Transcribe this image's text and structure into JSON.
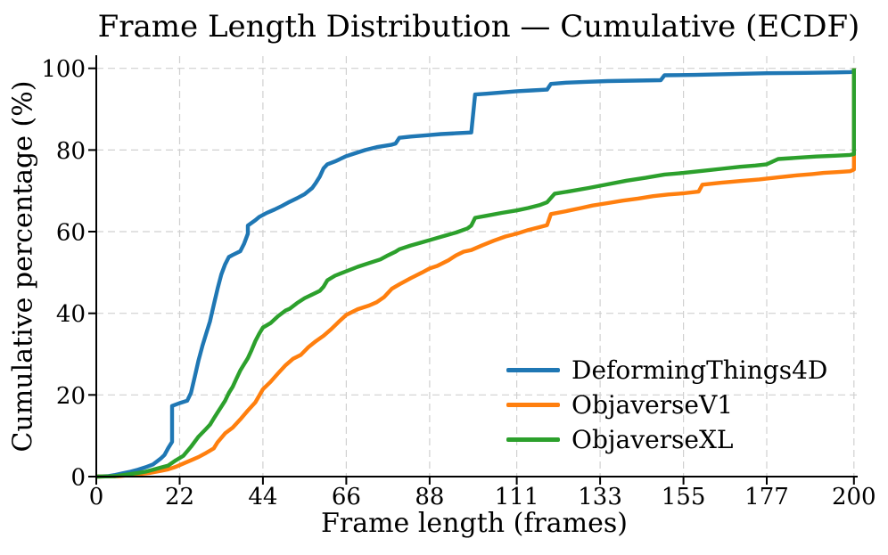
{
  "chart_data": {
    "type": "line",
    "title": "Frame Length Distribution — Cumulative (ECDF)",
    "xlabel": "Frame length (frames)",
    "ylabel": "Cumulative percentage (%)",
    "xlim": [
      0,
      200
    ],
    "ylim": [
      0,
      100
    ],
    "xticks": [
      0,
      22,
      44,
      66,
      88,
      111,
      133,
      155,
      177,
      200
    ],
    "yticks": [
      0,
      20,
      40,
      60,
      80,
      100
    ],
    "grid": true,
    "grid_color": "#d0d0d0",
    "axis_color": "#000000",
    "legend_position": "lower right",
    "series": [
      {
        "name": "DeformingThings4D",
        "color": "#1f77b4",
        "points": [
          [
            0,
            0
          ],
          [
            3,
            0.1
          ],
          [
            5,
            0.4
          ],
          [
            7,
            0.8
          ],
          [
            9,
            1.2
          ],
          [
            11,
            1.7
          ],
          [
            13,
            2.3
          ],
          [
            15,
            3
          ],
          [
            16,
            3.7
          ],
          [
            17,
            4.4
          ],
          [
            18,
            5.3
          ],
          [
            19,
            7
          ],
          [
            20,
            8.5
          ],
          [
            20,
            17.3
          ],
          [
            22,
            18
          ],
          [
            24,
            18.6
          ],
          [
            25,
            20.5
          ],
          [
            26,
            24.5
          ],
          [
            27,
            28.5
          ],
          [
            28,
            32
          ],
          [
            29,
            35
          ],
          [
            30,
            38
          ],
          [
            31,
            42
          ],
          [
            32,
            46
          ],
          [
            33,
            49.5
          ],
          [
            34,
            52
          ],
          [
            35,
            53.8
          ],
          [
            36,
            54.3
          ],
          [
            38,
            55.2
          ],
          [
            39,
            57
          ],
          [
            40,
            59.5
          ],
          [
            40,
            61.5
          ],
          [
            42,
            62.8
          ],
          [
            43,
            63.6
          ],
          [
            45,
            64.6
          ],
          [
            47,
            65.4
          ],
          [
            49,
            66.3
          ],
          [
            51,
            67.3
          ],
          [
            53,
            68.2
          ],
          [
            55,
            69.2
          ],
          [
            57,
            70.7
          ],
          [
            58,
            72
          ],
          [
            59,
            73.5
          ],
          [
            60,
            75.5
          ],
          [
            61,
            76.5
          ],
          [
            63,
            77.2
          ],
          [
            66,
            78.5
          ],
          [
            68,
            79.1
          ],
          [
            71,
            80
          ],
          [
            74,
            80.7
          ],
          [
            78,
            81.3
          ],
          [
            79,
            81.6
          ],
          [
            80,
            83
          ],
          [
            83,
            83.3
          ],
          [
            87,
            83.6
          ],
          [
            91,
            83.9
          ],
          [
            95,
            84.1
          ],
          [
            99,
            84.3
          ],
          [
            100,
            93.6
          ],
          [
            103,
            93.8
          ],
          [
            107,
            94.1
          ],
          [
            111,
            94.4
          ],
          [
            115,
            94.6
          ],
          [
            119,
            94.8
          ],
          [
            120,
            96.2
          ],
          [
            124,
            96.5
          ],
          [
            129,
            96.7
          ],
          [
            135,
            96.9
          ],
          [
            142,
            97
          ],
          [
            149,
            97.1
          ],
          [
            150,
            98.3
          ],
          [
            158,
            98.4
          ],
          [
            167,
            98.6
          ],
          [
            177,
            98.8
          ],
          [
            187,
            98.9
          ],
          [
            195,
            99
          ],
          [
            199,
            99.1
          ],
          [
            200,
            99.2
          ],
          [
            200,
            100
          ]
        ]
      },
      {
        "name": "ObjaverseV1",
        "color": "#ff7f0e",
        "points": [
          [
            0,
            0
          ],
          [
            6,
            0.1
          ],
          [
            9,
            0.4
          ],
          [
            12,
            0.7
          ],
          [
            14,
            0.9
          ],
          [
            17,
            1.4
          ],
          [
            19,
            1.8
          ],
          [
            21,
            2.4
          ],
          [
            23,
            3.2
          ],
          [
            25,
            4
          ],
          [
            27,
            4.8
          ],
          [
            29,
            5.8
          ],
          [
            31,
            6.9
          ],
          [
            32,
            8.4
          ],
          [
            34,
            10.6
          ],
          [
            36,
            12
          ],
          [
            38,
            14
          ],
          [
            40,
            16.2
          ],
          [
            42,
            18.2
          ],
          [
            44,
            21.4
          ],
          [
            46,
            23.2
          ],
          [
            48,
            25.3
          ],
          [
            50,
            27.3
          ],
          [
            52,
            28.9
          ],
          [
            54,
            29.8
          ],
          [
            56,
            31.7
          ],
          [
            58,
            33.2
          ],
          [
            60,
            34.5
          ],
          [
            62,
            36.1
          ],
          [
            64,
            37.9
          ],
          [
            66,
            39.6
          ],
          [
            69,
            41
          ],
          [
            72,
            41.9
          ],
          [
            74,
            42.7
          ],
          [
            76,
            44
          ],
          [
            78,
            46
          ],
          [
            80,
            47.1
          ],
          [
            83,
            48.6
          ],
          [
            86,
            50
          ],
          [
            88,
            51
          ],
          [
            90,
            51.6
          ],
          [
            93,
            53
          ],
          [
            95,
            54.2
          ],
          [
            97,
            55.1
          ],
          [
            99,
            55.5
          ],
          [
            102,
            56.7
          ],
          [
            105,
            57.8
          ],
          [
            108,
            58.8
          ],
          [
            111,
            59.5
          ],
          [
            114,
            60.4
          ],
          [
            117,
            61.1
          ],
          [
            119,
            61.6
          ],
          [
            120,
            64.3
          ],
          [
            124,
            65
          ],
          [
            128,
            65.8
          ],
          [
            131,
            66.4
          ],
          [
            135,
            67
          ],
          [
            139,
            67.6
          ],
          [
            143,
            68.1
          ],
          [
            147,
            68.7
          ],
          [
            151,
            69.1
          ],
          [
            155,
            69.4
          ],
          [
            159,
            69.8
          ],
          [
            160,
            71.5
          ],
          [
            165,
            72
          ],
          [
            170,
            72.4
          ],
          [
            175,
            72.8
          ],
          [
            180,
            73.3
          ],
          [
            185,
            73.8
          ],
          [
            189,
            74.1
          ],
          [
            192,
            74.4
          ],
          [
            196,
            74.6
          ],
          [
            199,
            74.8
          ],
          [
            200,
            75.2
          ],
          [
            200,
            100
          ]
        ]
      },
      {
        "name": "ObjaverseXL",
        "color": "#2ca02c",
        "points": [
          [
            0,
            0
          ],
          [
            5,
            0.1
          ],
          [
            8,
            0.5
          ],
          [
            11,
            0.9
          ],
          [
            13,
            1.2
          ],
          [
            15,
            1.7
          ],
          [
            17,
            2.2
          ],
          [
            19,
            2.7
          ],
          [
            21,
            4
          ],
          [
            23,
            5.1
          ],
          [
            25,
            7.3
          ],
          [
            27,
            9.8
          ],
          [
            29,
            11.7
          ],
          [
            30,
            12.7
          ],
          [
            31,
            14.2
          ],
          [
            32,
            15.7
          ],
          [
            33,
            17.1
          ],
          [
            34,
            18.6
          ],
          [
            35,
            20.5
          ],
          [
            36,
            22
          ],
          [
            37,
            24
          ],
          [
            38,
            26
          ],
          [
            39,
            27.5
          ],
          [
            40,
            29
          ],
          [
            41,
            31
          ],
          [
            42,
            33.2
          ],
          [
            43,
            35
          ],
          [
            44,
            36.5
          ],
          [
            46,
            37.6
          ],
          [
            48,
            39.3
          ],
          [
            50,
            40.7
          ],
          [
            51,
            41.1
          ],
          [
            53,
            42.5
          ],
          [
            55,
            43.7
          ],
          [
            57,
            44.6
          ],
          [
            59,
            45.5
          ],
          [
            60,
            46.5
          ],
          [
            61,
            48.1
          ],
          [
            63,
            49.2
          ],
          [
            66,
            50.3
          ],
          [
            69,
            51.4
          ],
          [
            72,
            52.3
          ],
          [
            75,
            53.2
          ],
          [
            77,
            54.2
          ],
          [
            79,
            55.1
          ],
          [
            80,
            55.7
          ],
          [
            83,
            56.6
          ],
          [
            86,
            57.4
          ],
          [
            89,
            58.2
          ],
          [
            92,
            59
          ],
          [
            95,
            59.8
          ],
          [
            98,
            60.8
          ],
          [
            99,
            61.5
          ],
          [
            100,
            63.4
          ],
          [
            103,
            63.9
          ],
          [
            107,
            64.6
          ],
          [
            111,
            65.2
          ],
          [
            114,
            65.8
          ],
          [
            117,
            66.5
          ],
          [
            119,
            67.2
          ],
          [
            121,
            69.3
          ],
          [
            125,
            69.9
          ],
          [
            130,
            70.7
          ],
          [
            135,
            71.6
          ],
          [
            140,
            72.5
          ],
          [
            145,
            73.2
          ],
          [
            150,
            74
          ],
          [
            155,
            74.4
          ],
          [
            160,
            74.9
          ],
          [
            165,
            75.4
          ],
          [
            170,
            75.9
          ],
          [
            174,
            76.2
          ],
          [
            177,
            76.5
          ],
          [
            180,
            77.8
          ],
          [
            185,
            78.1
          ],
          [
            190,
            78.4
          ],
          [
            195,
            78.6
          ],
          [
            199,
            78.8
          ],
          [
            200,
            79
          ],
          [
            200,
            100
          ]
        ]
      }
    ]
  }
}
